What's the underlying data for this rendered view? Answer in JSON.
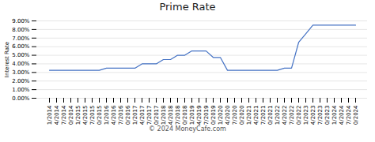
{
  "chart_data": {
    "type": "line",
    "title": "Prime Rate",
    "ylabel": "Interest Rate",
    "annotations": [
      "© 2024 MoneyCafe.com"
    ],
    "color": "#4472C4",
    "grid": true,
    "ylim": [
      0.0,
      0.09
    ],
    "yticks": [
      {
        "value": 0.0,
        "label": "0.00%"
      },
      {
        "value": 0.01,
        "label": "1.00%"
      },
      {
        "value": 0.02,
        "label": "2.00%"
      },
      {
        "value": 0.03,
        "label": "3.00%"
      },
      {
        "value": 0.04,
        "label": "4.00%"
      },
      {
        "value": 0.05,
        "label": "5.00%"
      },
      {
        "value": 0.06,
        "label": "6.00%"
      },
      {
        "value": 0.07,
        "label": "7.00%"
      },
      {
        "value": 0.08,
        "label": "8.00%"
      },
      {
        "value": 0.09,
        "label": "9.00%"
      }
    ],
    "categories": [
      "1/2014",
      "4/2014",
      "7/2014",
      "10/2014",
      "1/2015",
      "4/2015",
      "7/2015",
      "10/2015",
      "1/2016",
      "4/2016",
      "7/2016",
      "10/2016",
      "1/2017",
      "4/2017",
      "7/2017",
      "10/2017",
      "1/2018",
      "4/2018",
      "7/2018",
      "10/2018",
      "1/2019",
      "4/2019",
      "7/2019",
      "10/2019",
      "1/2020",
      "4/2020",
      "7/2020",
      "10/2020",
      "1/2021",
      "4/2021",
      "7/2021",
      "10/2021",
      "1/2022",
      "4/2022",
      "7/2022",
      "10/2022",
      "1/2023",
      "4/2023",
      "7/2023",
      "10/2023",
      "1/2024",
      "4/2024",
      "7/2024",
      "10/2024"
    ],
    "values": [
      0.0325,
      0.0325,
      0.0325,
      0.0325,
      0.0325,
      0.0325,
      0.0325,
      0.0325,
      0.035,
      0.035,
      0.035,
      0.035,
      0.035,
      0.04,
      0.04,
      0.04,
      0.045,
      0.045,
      0.05,
      0.05,
      0.055,
      0.055,
      0.055,
      0.0475,
      0.0475,
      0.0325,
      0.0325,
      0.0325,
      0.0325,
      0.0325,
      0.0325,
      0.0325,
      0.0325,
      0.035,
      0.035,
      0.065,
      0.075,
      0.085,
      0.085,
      0.085,
      0.085,
      0.085,
      0.085,
      0.085
    ]
  }
}
